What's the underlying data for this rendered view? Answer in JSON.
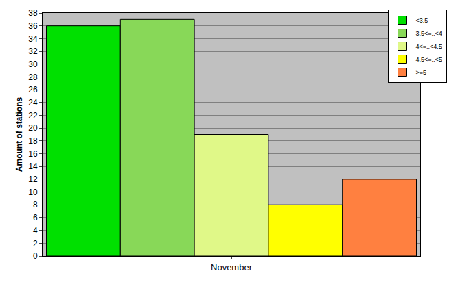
{
  "chart_data": {
    "type": "bar",
    "categories": [
      "November"
    ],
    "series": [
      {
        "name": "<3.5",
        "color": "#00e000",
        "values": [
          36
        ]
      },
      {
        "name": "3.5<=..<4",
        "color": "#88d858",
        "values": [
          37
        ]
      },
      {
        "name": "4<=..<4.5",
        "color": "#e0f888",
        "values": [
          19
        ]
      },
      {
        "name": "4.5<=..<5",
        "color": "#ffff00",
        "values": [
          8
        ]
      },
      {
        "name": ">=5",
        "color": "#ff8040",
        "values": [
          12
        ]
      }
    ],
    "ylabel": "Amount of stations",
    "ylim": [
      0,
      38
    ],
    "yticks": [
      0,
      2,
      4,
      6,
      8,
      10,
      12,
      14,
      16,
      18,
      20,
      22,
      24,
      26,
      28,
      30,
      32,
      34,
      36,
      38
    ],
    "grid": true,
    "legend": "upper right"
  }
}
